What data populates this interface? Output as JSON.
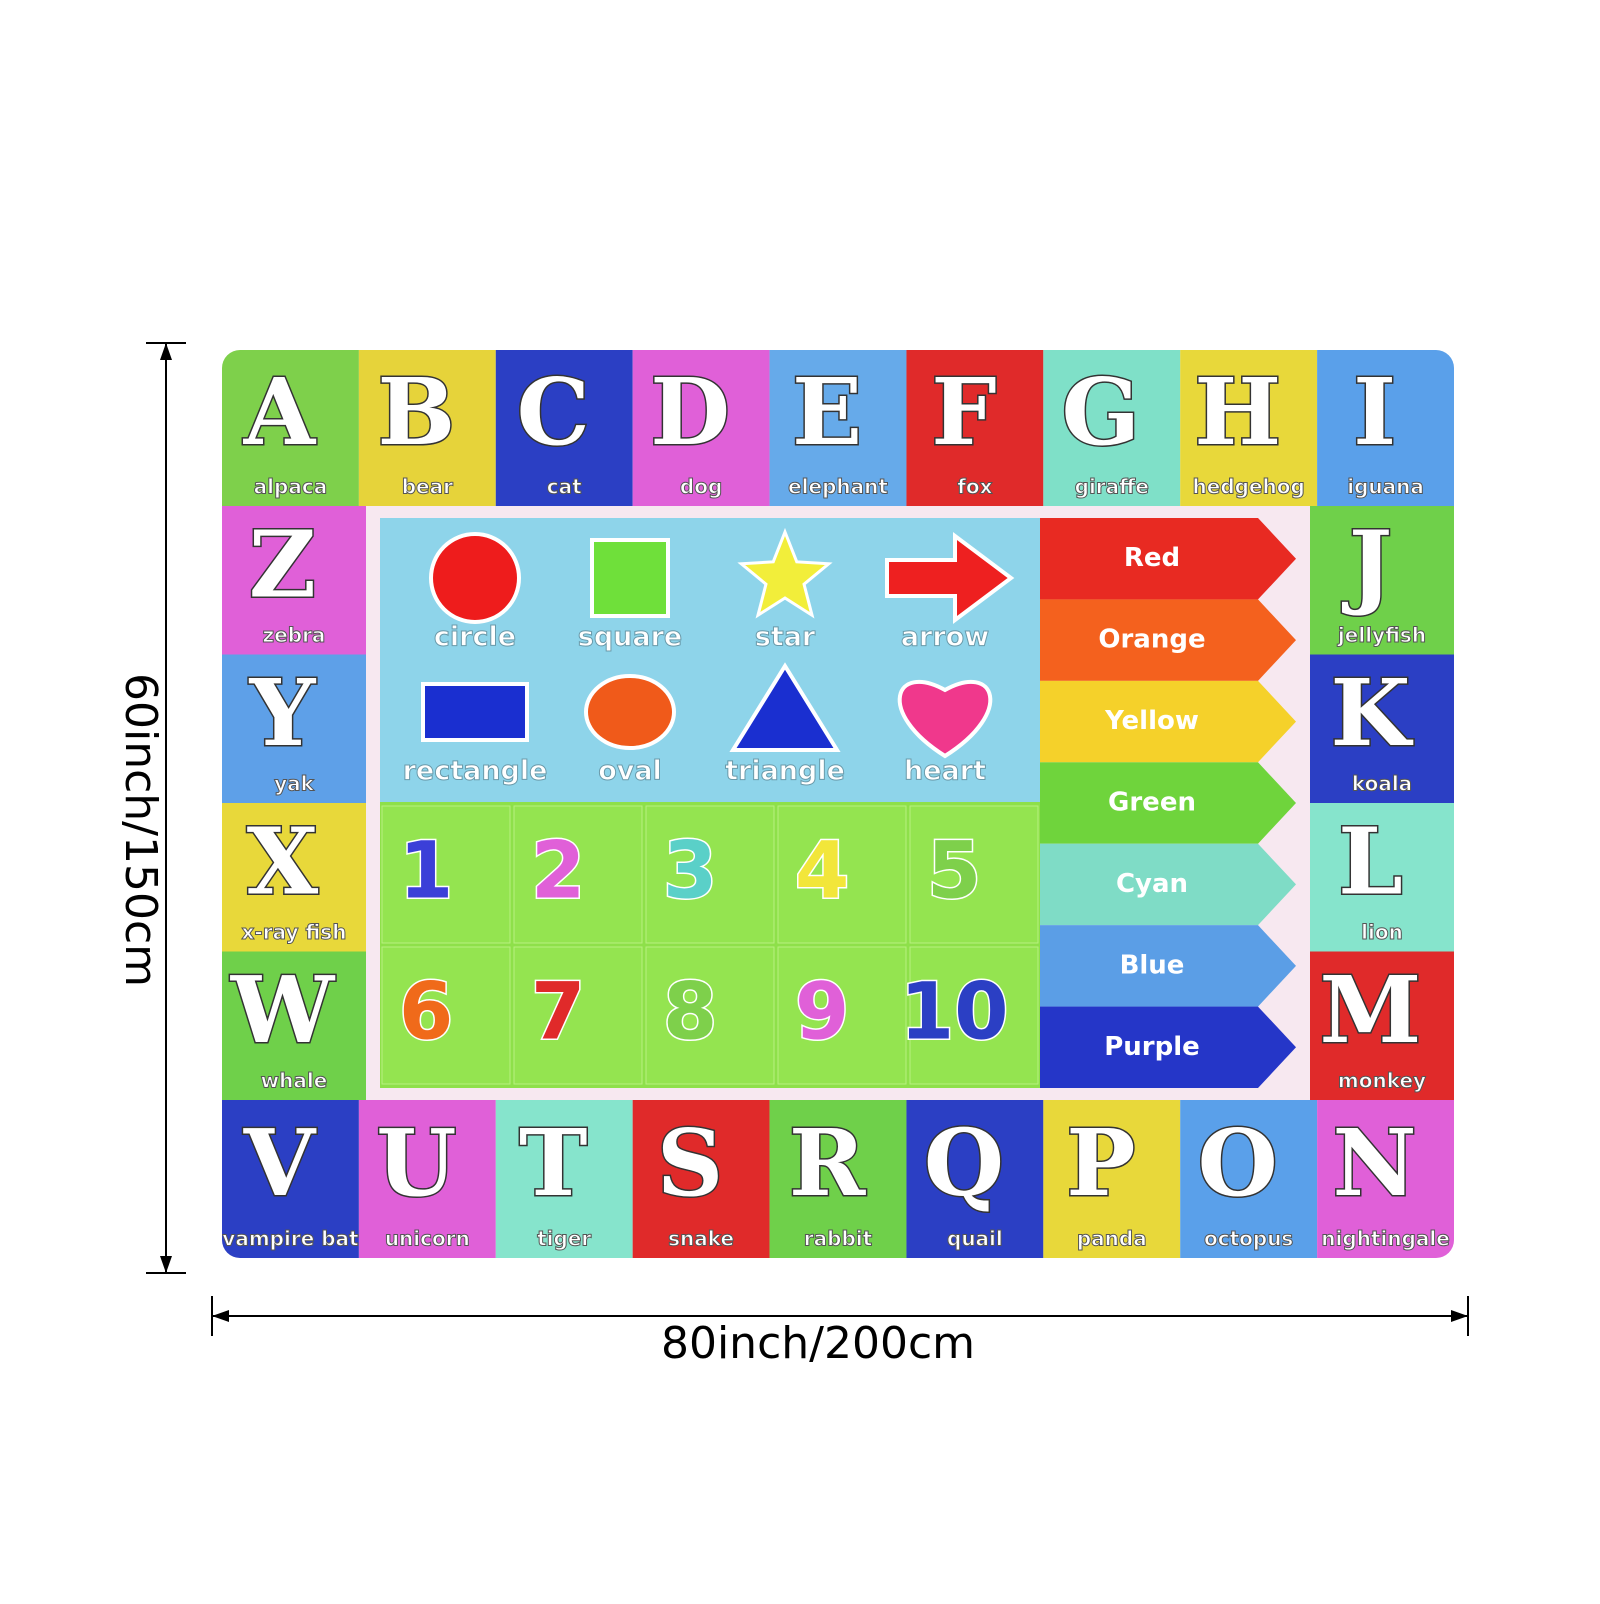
{
  "dimensions": {
    "height": "60inch/150cm",
    "width": "80inch/200cm"
  },
  "mat": {
    "top_row": [
      {
        "letter": "A",
        "word": "alpaca",
        "color": "#7ed04b"
      },
      {
        "letter": "B",
        "word": "bear",
        "color": "#e6d33a"
      },
      {
        "letter": "C",
        "word": "cat",
        "color": "#2b3fc4"
      },
      {
        "letter": "D",
        "word": "dog",
        "color": "#e060d8"
      },
      {
        "letter": "E",
        "word": "elephant",
        "color": "#66aaea"
      },
      {
        "letter": "F",
        "word": "fox",
        "color": "#e02a2a"
      },
      {
        "letter": "G",
        "word": "giraffe",
        "color": "#7fe0c8"
      },
      {
        "letter": "H",
        "word": "hedgehog",
        "color": "#e8d83a"
      },
      {
        "letter": "I",
        "word": "iguana",
        "color": "#5aa0ea"
      }
    ],
    "right_column": [
      {
        "letter": "J",
        "word": "jellyfish",
        "color": "#6fd04a"
      },
      {
        "letter": "K",
        "word": "koala",
        "color": "#2b3fc4"
      },
      {
        "letter": "L",
        "word": "lion",
        "color": "#86e4cc"
      },
      {
        "letter": "M",
        "word": "monkey",
        "color": "#e02a2a"
      }
    ],
    "bottom_row": [
      {
        "letter": "V",
        "word": "vampire bat",
        "color": "#2b3fc4"
      },
      {
        "letter": "U",
        "word": "unicorn",
        "color": "#e060d8"
      },
      {
        "letter": "T",
        "word": "tiger",
        "color": "#86e4cc"
      },
      {
        "letter": "S",
        "word": "snake",
        "color": "#e02a2a"
      },
      {
        "letter": "R",
        "word": "rabbit",
        "color": "#6fd04a"
      },
      {
        "letter": "Q",
        "word": "quail",
        "color": "#2b3fc4"
      },
      {
        "letter": "P",
        "word": "panda",
        "color": "#e8d83a"
      },
      {
        "letter": "O",
        "word": "octopus",
        "color": "#5aa0ea"
      },
      {
        "letter": "N",
        "word": "nightingale",
        "color": "#e060d8"
      }
    ],
    "left_column": [
      {
        "letter": "Z",
        "word": "zebra",
        "color": "#e060d8"
      },
      {
        "letter": "Y",
        "word": "yak",
        "color": "#5ea0e8"
      },
      {
        "letter": "X",
        "word": "x-ray fish",
        "color": "#e8d83a"
      },
      {
        "letter": "W",
        "word": "whale",
        "color": "#6fd04a"
      }
    ],
    "shapes": [
      "circle",
      "square",
      "star",
      "arrow",
      "rectangle",
      "oval",
      "triangle",
      "heart"
    ],
    "numbers": [
      1,
      2,
      3,
      4,
      5,
      6,
      7,
      8,
      9,
      10
    ],
    "colors": [
      {
        "name": "Red",
        "color": "#e82a22"
      },
      {
        "name": "Orange",
        "color": "#f4611e"
      },
      {
        "name": "Yellow",
        "color": "#f5d12a"
      },
      {
        "name": "Green",
        "color": "#6fd43c"
      },
      {
        "name": "Cyan",
        "color": "#7fdcc6"
      },
      {
        "name": "Blue",
        "color": "#5b9ee6"
      },
      {
        "name": "Purple",
        "color": "#2536c8"
      }
    ]
  }
}
